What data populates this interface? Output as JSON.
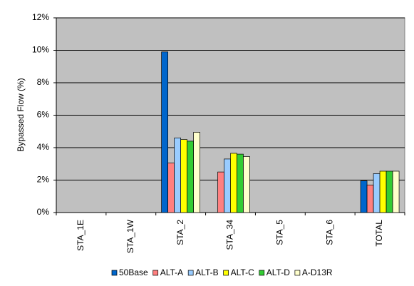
{
  "chart_data": {
    "type": "bar",
    "y_label": "Bypassed Flow (%)",
    "categories": [
      "STA_1E",
      "STA_1W",
      "STA_2",
      "STA_34",
      "STA_5",
      "STA_6",
      "TOTAL"
    ],
    "series": [
      {
        "name": "50Base",
        "color": "#0066cc",
        "values": [
          0,
          0,
          9.9,
          0,
          0,
          0,
          1.95
        ]
      },
      {
        "name": "ALT-A",
        "color": "#ff8080",
        "values": [
          0,
          0,
          3.05,
          2.5,
          0,
          0,
          1.7
        ]
      },
      {
        "name": "ALT-B",
        "color": "#99ccff",
        "values": [
          0,
          0,
          4.6,
          3.3,
          0,
          0,
          2.4
        ]
      },
      {
        "name": "ALT-C",
        "color": "#ffff00",
        "values": [
          0,
          0,
          4.5,
          3.65,
          0,
          0,
          2.55
        ]
      },
      {
        "name": "ALT-D",
        "color": "#33cc33",
        "values": [
          0,
          0,
          4.4,
          3.6,
          0,
          0,
          2.55
        ]
      },
      {
        "name": "A-D13R",
        "color": "#ffffcc",
        "values": [
          0,
          0,
          4.95,
          3.45,
          0,
          0,
          2.55
        ]
      }
    ],
    "ylim": [
      0,
      12
    ],
    "yticks": [
      {
        "value": 0,
        "label": "0%"
      },
      {
        "value": 2,
        "label": "2%"
      },
      {
        "value": 4,
        "label": "4%"
      },
      {
        "value": 6,
        "label": "6%"
      },
      {
        "value": 8,
        "label": "8%"
      },
      {
        "value": 10,
        "label": "10%"
      },
      {
        "value": 12,
        "label": "12%"
      }
    ],
    "grid": true,
    "background": "#c0c0c0",
    "legend": "bottom"
  }
}
